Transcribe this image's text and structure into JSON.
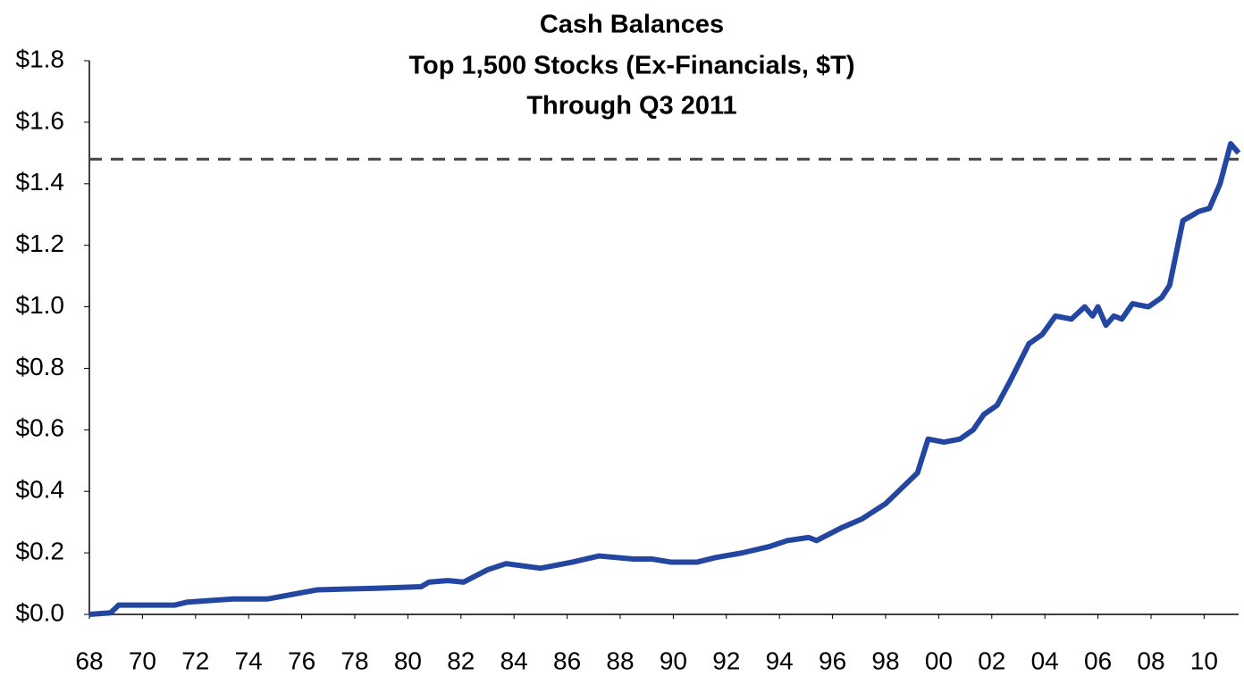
{
  "chart_data": {
    "type": "line",
    "title": [
      "Cash Balances",
      "Top 1,500 Stocks (Ex-Financials, $T)",
      "Through Q3 2011"
    ],
    "x": [
      1968,
      1968.8,
      1969.1,
      1971.2,
      1971.7,
      1973.4,
      1974.7,
      1976.6,
      1978.8,
      1980.5,
      1980.8,
      1981.5,
      1982.1,
      1983,
      1983.7,
      1985,
      1986.2,
      1987.2,
      1988.5,
      1989.2,
      1989.9,
      1990.9,
      1991.6,
      1992.6,
      1993.6,
      1994.3,
      1995.1,
      1995.4,
      1996.3,
      1997.1,
      1998,
      1998.6,
      1999.2,
      1999.6,
      2000.2,
      2000.8,
      2001.3,
      2001.7,
      2002.2,
      2002.7,
      2003.4,
      2003.9,
      2004.4,
      2005,
      2005.5,
      2005.8,
      2006,
      2006.3,
      2006.6,
      2006.9,
      2007.3,
      2007.9,
      2008.4,
      2008.7,
      2009.2,
      2009.8,
      2010.2,
      2010.6,
      2011,
      2011.3
    ],
    "series": [
      {
        "color": "#2346a0",
        "values": [
          0,
          0.005,
          0.03,
          0.03,
          0.04,
          0.05,
          0.05,
          0.08,
          0.085,
          0.09,
          0.105,
          0.11,
          0.105,
          0.145,
          0.165,
          0.15,
          0.17,
          0.19,
          0.18,
          0.18,
          0.17,
          0.17,
          0.185,
          0.2,
          0.22,
          0.24,
          0.25,
          0.24,
          0.28,
          0.31,
          0.36,
          0.41,
          0.46,
          0.57,
          0.56,
          0.57,
          0.6,
          0.65,
          0.68,
          0.76,
          0.88,
          0.91,
          0.97,
          0.96,
          1.0,
          0.97,
          1.0,
          0.94,
          0.97,
          0.96,
          1.01,
          1.0,
          1.03,
          1.07,
          1.28,
          1.31,
          1.32,
          1.4,
          1.53,
          1.5
        ]
      }
    ],
    "reference_line": 1.48,
    "xlim": [
      1968,
      2011.3
    ],
    "xticks": [
      {
        "value": 1968,
        "label": "68"
      },
      {
        "value": 1970,
        "label": "70"
      },
      {
        "value": 1972,
        "label": "72"
      },
      {
        "value": 1974,
        "label": "74"
      },
      {
        "value": 1976,
        "label": "76"
      },
      {
        "value": 1978,
        "label": "78"
      },
      {
        "value": 1980,
        "label": "80"
      },
      {
        "value": 1982,
        "label": "82"
      },
      {
        "value": 1984,
        "label": "84"
      },
      {
        "value": 1986,
        "label": "86"
      },
      {
        "value": 1988,
        "label": "88"
      },
      {
        "value": 1990,
        "label": "90"
      },
      {
        "value": 1992,
        "label": "92"
      },
      {
        "value": 1994,
        "label": "94"
      },
      {
        "value": 1996,
        "label": "96"
      },
      {
        "value": 1998,
        "label": "98"
      },
      {
        "value": 2000,
        "label": "00"
      },
      {
        "value": 2002,
        "label": "02"
      },
      {
        "value": 2004,
        "label": "04"
      },
      {
        "value": 2006,
        "label": "06"
      },
      {
        "value": 2008,
        "label": "08"
      },
      {
        "value": 2010,
        "label": "10"
      }
    ],
    "ylim": [
      0,
      1.8
    ],
    "yticks": [
      {
        "value": 0,
        "label": "$0.0"
      },
      {
        "value": 0.2,
        "label": "$0.2"
      },
      {
        "value": 0.4,
        "label": "$0.4"
      },
      {
        "value": 0.6,
        "label": "$0.6"
      },
      {
        "value": 0.8,
        "label": "$0.8"
      },
      {
        "value": 1.0,
        "label": "$1.0"
      },
      {
        "value": 1.2,
        "label": "$1.2"
      },
      {
        "value": 1.4,
        "label": "$1.4"
      },
      {
        "value": 1.6,
        "label": "$1.6"
      },
      {
        "value": 1.8,
        "label": "$1.8"
      }
    ]
  }
}
